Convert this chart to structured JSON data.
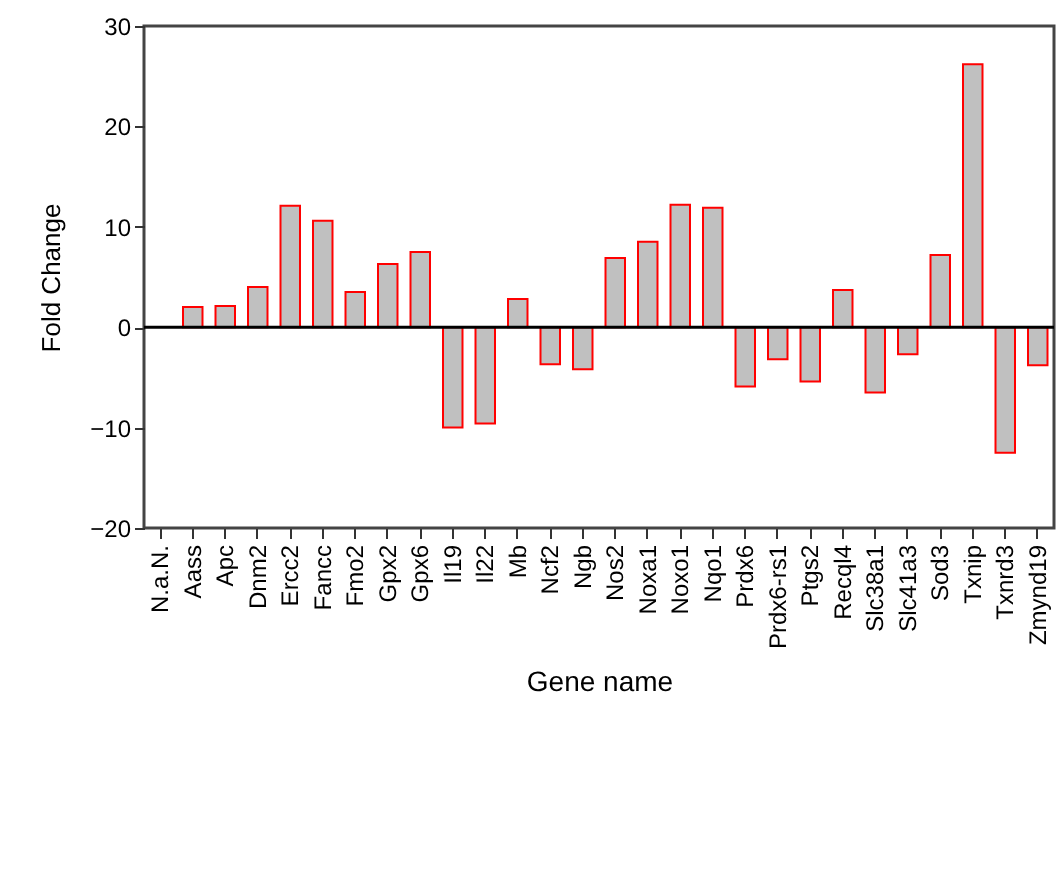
{
  "chart_data": {
    "type": "bar",
    "xlabel": "Gene name",
    "ylabel": "Fold Change",
    "categories": [
      "N.a.N.",
      "Aass",
      "Apc",
      "Dnm2",
      "Ercc2",
      "Fancc",
      "Fmo2",
      "Gpx2",
      "Gpx6",
      "Il19",
      "Il22",
      "Mb",
      "Ncf2",
      "Ngb",
      "Nos2",
      "Noxa1",
      "Noxo1",
      "Nqo1",
      "Prdx6",
      "Prdx6-rs1",
      "Ptgs2",
      "Recql4",
      "Slc38a1",
      "Slc41a3",
      "Sod3",
      "Txnip",
      "Txnrd3",
      "Zmynd19"
    ],
    "values": [
      null,
      2.0,
      2.1,
      4.0,
      12.1,
      10.6,
      3.5,
      6.3,
      7.5,
      -10.0,
      -9.6,
      2.8,
      -3.7,
      -4.2,
      6.9,
      8.5,
      12.2,
      11.9,
      -5.9,
      -3.2,
      -5.4,
      3.7,
      -6.5,
      -2.7,
      7.2,
      26.2,
      -12.5,
      -3.8
    ],
    "color": "#c0c0c0",
    "ylim": [
      -20,
      30
    ],
    "yticks": [
      -20,
      -10,
      0,
      10,
      20,
      30
    ],
    "ref_lines": [
      {
        "axis": "y",
        "value": 0,
        "color": "#000000"
      }
    ]
  }
}
